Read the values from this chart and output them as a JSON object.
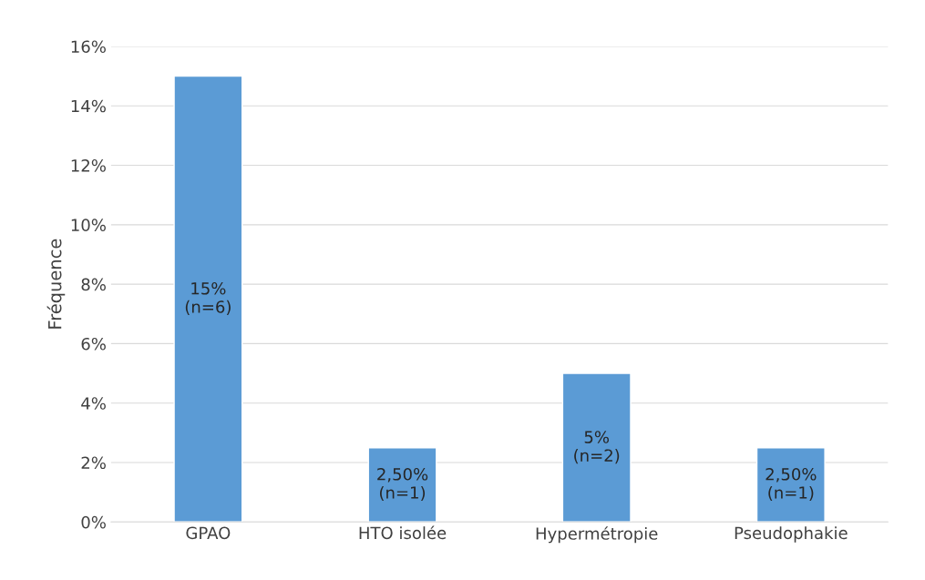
{
  "chart_data": {
    "type": "bar",
    "ylabel": "Fréquence",
    "categories": [
      "GPAO",
      "HTO isolée",
      "Hypermétropie",
      "Pseudophakie"
    ],
    "values": [
      15,
      2.5,
      5,
      2.5
    ],
    "value_labels": [
      "15%\n(n=6)",
      "2,50%\n(n=1)",
      "5%\n(n=2)",
      "2,50%\n(n=1)"
    ],
    "color": "#5b9bd5",
    "ylim": [
      0,
      16
    ],
    "yticks": [
      {
        "value": 0,
        "label": "0%"
      },
      {
        "value": 2,
        "label": "2%"
      },
      {
        "value": 4,
        "label": "4%"
      },
      {
        "value": 6,
        "label": "6%"
      },
      {
        "value": 8,
        "label": "8%"
      },
      {
        "value": 10,
        "label": "10%"
      },
      {
        "value": 12,
        "label": "12%"
      },
      {
        "value": 14,
        "label": "14%"
      },
      {
        "value": 16,
        "label": "16%"
      }
    ],
    "grid": "y",
    "legend": false
  }
}
